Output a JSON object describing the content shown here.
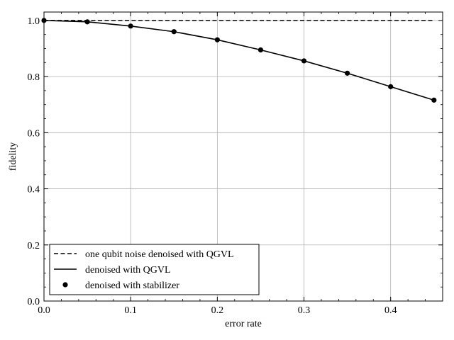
{
  "chart_data": {
    "type": "line",
    "xlabel": "error rate",
    "ylabel": "fidelity",
    "xlim": [
      0.0,
      0.46
    ],
    "ylim": [
      0.0,
      1.03
    ],
    "grid": true,
    "legend_position": "lower-left",
    "x_ticks": [
      0.0,
      0.1,
      0.2,
      0.3,
      0.4
    ],
    "x_tick_labels": [
      "0.0",
      "0.1",
      "0.2",
      "0.3",
      "0.4"
    ],
    "y_ticks": [
      0.0,
      0.2,
      0.4,
      0.6,
      0.8,
      1.0
    ],
    "y_tick_labels": [
      "0.0",
      "0.2",
      "0.4",
      "0.6",
      "0.8",
      "1.0"
    ],
    "series": [
      {
        "name": "one qubit noise denoised with QGVL",
        "style": "dashed",
        "color": "#000000",
        "x": [
          0.0,
          0.05,
          0.1,
          0.15,
          0.2,
          0.25,
          0.3,
          0.35,
          0.4,
          0.45
        ],
        "y": [
          1.0,
          1.0,
          1.0,
          1.0,
          1.0,
          1.0,
          1.0,
          1.0,
          1.0,
          1.0
        ]
      },
      {
        "name": "denoised with QGVL",
        "style": "solid",
        "color": "#000000",
        "x": [
          0.0,
          0.05,
          0.1,
          0.15,
          0.2,
          0.25,
          0.3,
          0.35,
          0.4,
          0.45
        ],
        "y": [
          1.0,
          0.995,
          0.98,
          0.96,
          0.931,
          0.895,
          0.856,
          0.812,
          0.764,
          0.716
        ]
      },
      {
        "name": "denoised with stabilizer",
        "style": "markers",
        "color": "#000000",
        "x": [
          0.0,
          0.05,
          0.1,
          0.15,
          0.2,
          0.25,
          0.3,
          0.35,
          0.4,
          0.45
        ],
        "y": [
          1.0,
          0.995,
          0.98,
          0.96,
          0.931,
          0.895,
          0.856,
          0.812,
          0.764,
          0.716
        ]
      }
    ]
  }
}
